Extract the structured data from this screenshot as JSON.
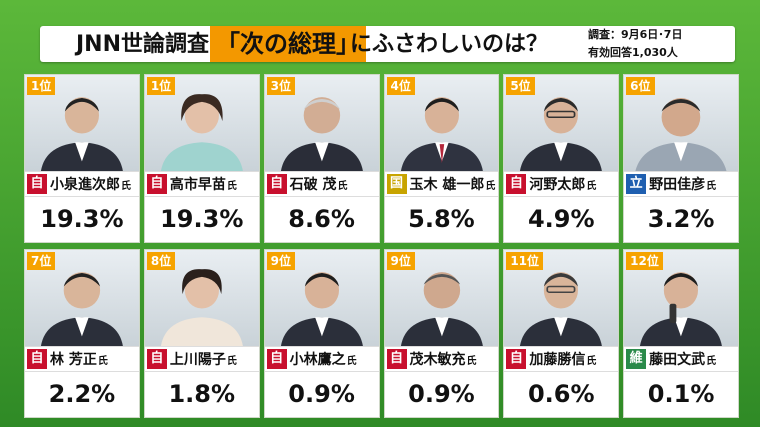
{
  "header": {
    "source": "JNN世論調査",
    "question_accent": "「次の総理」",
    "question_rest": "にふさわしいのは？",
    "survey_date": "調査：9月6日･7日",
    "respondents": "有効回答1,030人"
  },
  "colors": {
    "ldp": "#c8102e",
    "dpfp": "#c8a400",
    "cdp": "#1f5fb0",
    "ishin": "#2a8a4a",
    "rank_badge": "#f6a300",
    "title_accent": "#f39800"
  },
  "candidates": [
    {
      "rank": "1位",
      "party": "自",
      "party_key": "ldp",
      "name": "小泉進次郎",
      "honorific": "氏",
      "pct": "19.3%",
      "value": 19.3
    },
    {
      "rank": "1位",
      "party": "自",
      "party_key": "ldp",
      "name": "高市早苗",
      "honorific": "氏",
      "pct": "19.3%",
      "value": 19.3
    },
    {
      "rank": "3位",
      "party": "自",
      "party_key": "ldp",
      "name": "石破 茂",
      "honorific": "氏",
      "pct": "8.6%",
      "value": 8.6
    },
    {
      "rank": "4位",
      "party": "国",
      "party_key": "dpfp",
      "name": "玉木 雄一郎",
      "honorific": "氏",
      "pct": "5.8%",
      "value": 5.8
    },
    {
      "rank": "5位",
      "party": "自",
      "party_key": "ldp",
      "name": "河野太郎",
      "honorific": "氏",
      "pct": "4.9%",
      "value": 4.9
    },
    {
      "rank": "6位",
      "party": "立",
      "party_key": "cdp",
      "name": "野田佳彦",
      "honorific": "氏",
      "pct": "3.2%",
      "value": 3.2
    },
    {
      "rank": "7位",
      "party": "自",
      "party_key": "ldp",
      "name": "林 芳正",
      "honorific": "氏",
      "pct": "2.2%",
      "value": 2.2
    },
    {
      "rank": "8位",
      "party": "自",
      "party_key": "ldp",
      "name": "上川陽子",
      "honorific": "氏",
      "pct": "1.8%",
      "value": 1.8
    },
    {
      "rank": "9位",
      "party": "自",
      "party_key": "ldp",
      "name": "小林鷹之",
      "honorific": "氏",
      "pct": "0.9%",
      "value": 0.9
    },
    {
      "rank": "9位",
      "party": "自",
      "party_key": "ldp",
      "name": "茂木敏充",
      "honorific": "氏",
      "pct": "0.9%",
      "value": 0.9
    },
    {
      "rank": "11位",
      "party": "自",
      "party_key": "ldp",
      "name": "加藤勝信",
      "honorific": "氏",
      "pct": "0.6%",
      "value": 0.6
    },
    {
      "rank": "12位",
      "party": "維",
      "party_key": "ishin",
      "name": "藤田文武",
      "honorific": "氏",
      "pct": "0.1%",
      "value": 0.1
    }
  ]
}
